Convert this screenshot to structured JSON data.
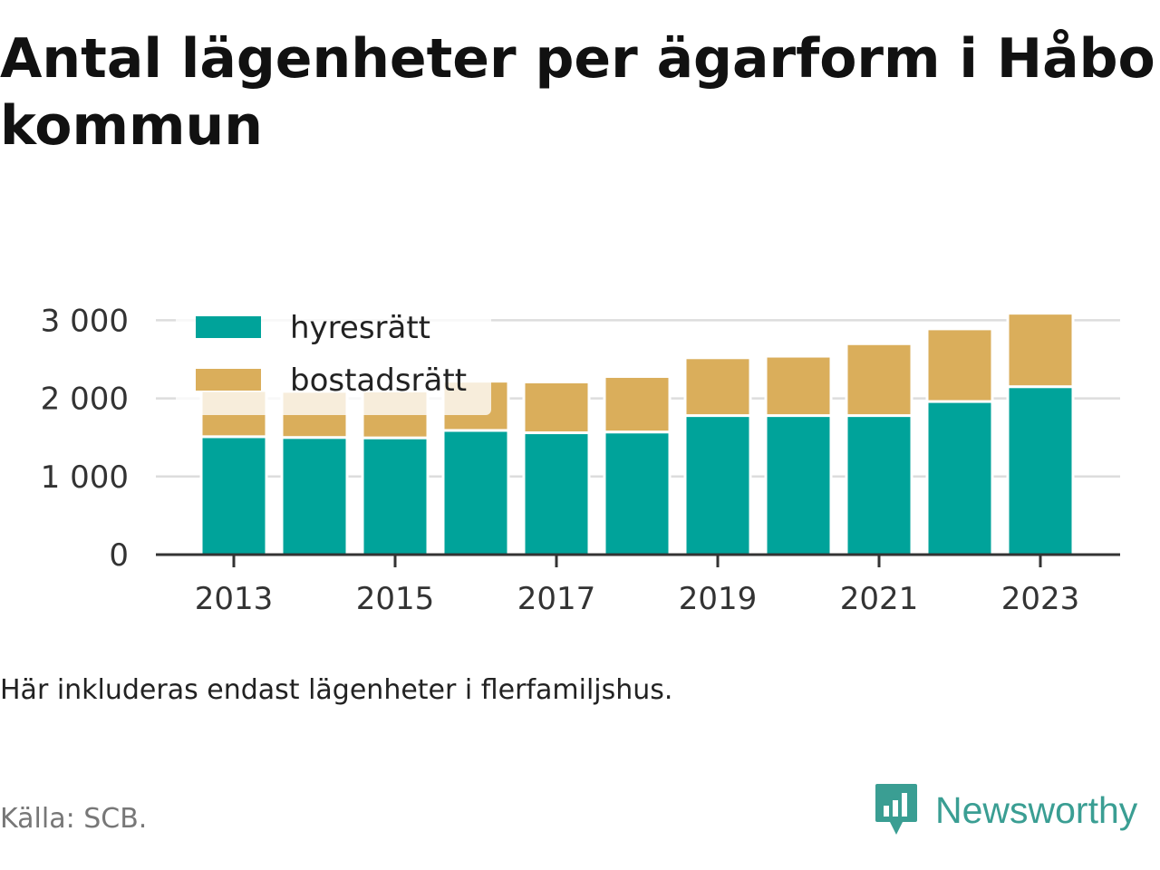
{
  "title": "Antal lägenheter per ägarform i Håbo kommun",
  "note": "Här inkluderas endast lägenheter i flerfamiljshus.",
  "source": "Källa: SCB.",
  "brand": {
    "name": "Newsworthy",
    "icon": "bar-chart-speech-bubble-icon",
    "color": "#3a9e93"
  },
  "colors": {
    "hyresratt": "#00a39a",
    "bostadsratt": "#daae5b",
    "grid": "#dddddd",
    "axis": "#333333"
  },
  "chart_data": {
    "type": "bar",
    "stacked": true,
    "title": "Antal lägenheter per ägarform i Håbo kommun",
    "xlabel": "",
    "ylabel": "",
    "categories": [
      2013,
      2014,
      2015,
      2016,
      2017,
      2018,
      2019,
      2020,
      2021,
      2022,
      2023
    ],
    "x_tick_labels": [
      "2013",
      "2015",
      "2017",
      "2019",
      "2021",
      "2023"
    ],
    "y_tick_labels": [
      "0",
      "1 000",
      "2 000",
      "3 000"
    ],
    "y_ticks": [
      0,
      1000,
      2000,
      3000
    ],
    "ylim": [
      0,
      3000
    ],
    "grid": true,
    "legend": "top-left",
    "series": [
      {
        "name": "hyresrätt",
        "color": "#00a39a",
        "values": [
          1510,
          1500,
          1495,
          1590,
          1560,
          1570,
          1780,
          1780,
          1780,
          1960,
          2150
        ]
      },
      {
        "name": "bostadsrätt",
        "color": "#daae5b",
        "values": [
          590,
          590,
          600,
          630,
          650,
          710,
          740,
          760,
          920,
          930,
          940
        ]
      }
    ]
  }
}
